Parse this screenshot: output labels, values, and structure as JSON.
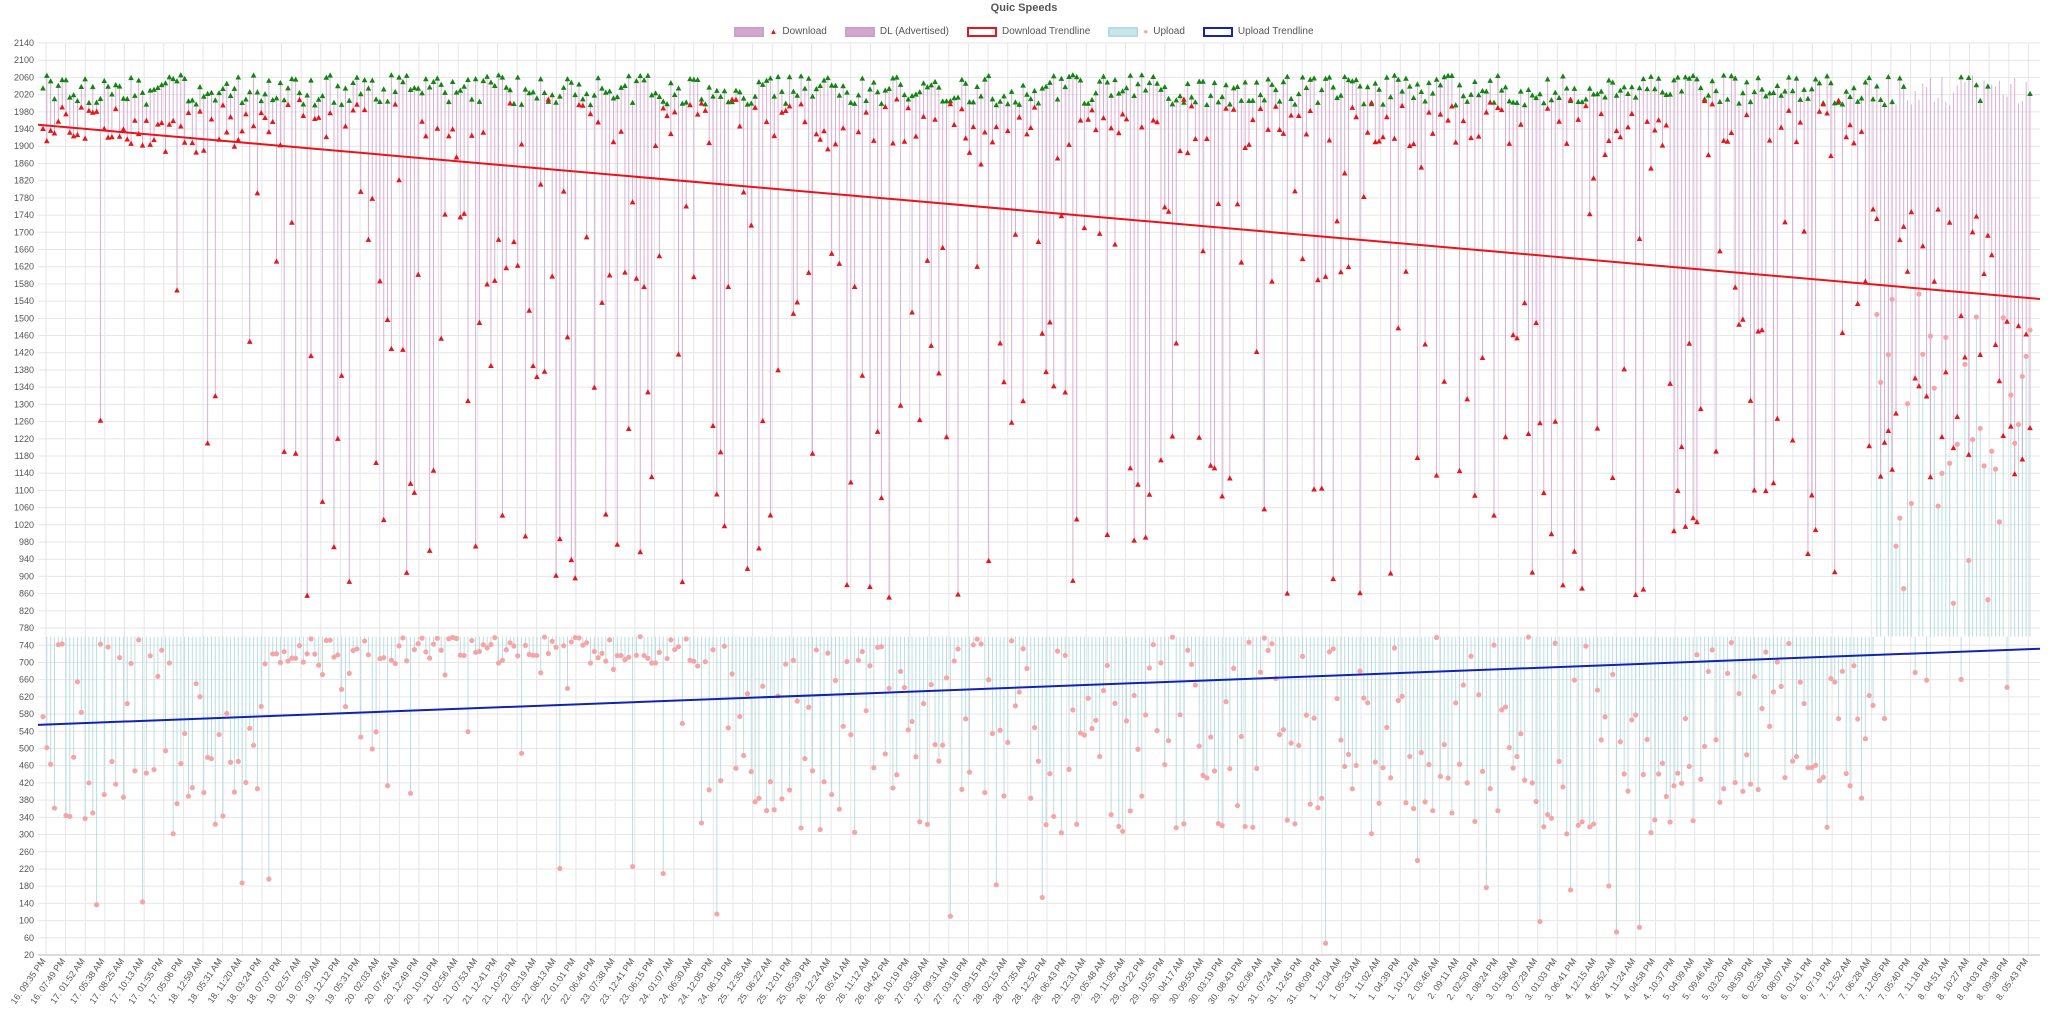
{
  "chart_data": {
    "type": "line",
    "title": "Quic Speeds",
    "legend_position": "top-center",
    "grid": true,
    "ylim": [
      20,
      2140
    ],
    "y_ticks": [
      2140,
      2100,
      2060,
      2020,
      1980,
      1940,
      1900,
      1860,
      1820,
      1780,
      1740,
      1700,
      1660,
      1620,
      1580,
      1540,
      1500,
      1460,
      1420,
      1380,
      1340,
      1300,
      1260,
      1220,
      1180,
      1140,
      1100,
      1060,
      1020,
      980,
      940,
      900,
      860,
      820,
      780,
      740,
      700,
      660,
      620,
      580,
      540,
      500,
      460,
      420,
      380,
      340,
      300,
      260,
      220,
      180,
      140,
      100,
      60,
      20
    ],
    "x_tick_labels": [
      "16. 09:35 PM",
      "16. 07:49 PM",
      "17. 01:52 AM",
      "17. 05:38 AM",
      "17. 08:25 AM",
      "17. 10:13 AM",
      "17. 01:55 PM",
      "17. 05:06 PM",
      "18. 12:59 AM",
      "18. 05:31 AM",
      "18. 11:20 AM",
      "18. 03:24 PM",
      "18. 07:07 PM",
      "19. 02:57 AM",
      "19. 07:30 AM",
      "19. 12:12 PM",
      "19. 05:31 PM",
      "20. 02:03 AM",
      "20. 07:45 AM",
      "20. 12:49 PM",
      "20. 10:19 PM",
      "21. 02:56 AM",
      "21. 07:53 AM",
      "21. 12:41 PM",
      "21. 10:25 PM",
      "22. 03:19 AM",
      "22. 08:13 AM",
      "22. 01:01 PM",
      "22. 06:46 PM",
      "23. 07:38 AM",
      "23. 12:41 PM",
      "23. 06:15 PM",
      "24. 01:07 AM",
      "24. 06:30 AM",
      "24. 12:05 PM",
      "24. 06:19 PM",
      "25. 12:35 AM",
      "25. 06:22 AM",
      "25. 12:01 PM",
      "25. 05:39 PM",
      "26. 12:24 AM",
      "26. 05:41 AM",
      "26. 11:12 AM",
      "26. 04:42 PM",
      "26. 10:19 PM",
      "27. 03:58 AM",
      "27. 09:31 AM",
      "27. 03:18 PM",
      "27. 09:15 PM",
      "28. 02:15 AM",
      "28. 07:35 AM",
      "28. 12:52 PM",
      "28. 06:43 PM",
      "29. 12:31 AM",
      "29. 05:48 AM",
      "29. 11:05 AM",
      "29. 04:22 PM",
      "29. 10:55 PM",
      "30. 04:17 AM",
      "30. 09:55 AM",
      "30. 03:19 PM",
      "30. 08:43 PM",
      "31. 02:06 AM",
      "31. 07:24 AM",
      "31. 12:45 PM",
      "31. 06:09 PM",
      "1. 12:04 AM",
      "1. 05:33 AM",
      "1. 11:02 AM",
      "1. 04:39 PM",
      "1. 10:12 PM",
      "2. 03:46 AM",
      "2. 09:11 AM",
      "2. 02:50 PM",
      "2. 08:24 PM",
      "3. 01:58 AM",
      "3. 07:29 AM",
      "3. 01:03 PM",
      "3. 06:41 PM",
      "4. 12:15 AM",
      "4. 05:52 AM",
      "4. 11:24 AM",
      "4. 04:58 PM",
      "4. 10:37 PM",
      "5. 04:09 AM",
      "5. 09:46 AM",
      "5. 03:20 PM",
      "5. 08:59 PM",
      "6. 02:35 AM",
      "6. 08:07 AM",
      "6. 01:41 PM",
      "6. 07:19 PM",
      "7. 12:52 AM",
      "7. 06:28 AM",
      "7. 12:05 PM",
      "7. 05:40 PM",
      "7. 11:18 PM",
      "8. 04:51 AM",
      "8. 10:27 AM",
      "8. 04:03 PM",
      "8. 09:38 PM",
      "8. 05:43 PM"
    ],
    "series": [
      {
        "name": "Download",
        "kind": "triangle-markers",
        "color": "#e8141a",
        "fill_color": "#d4a6d0",
        "trend_start": 1950,
        "trend_end": 1545
      },
      {
        "name": "DL (Advertised)",
        "kind": "triangle-markers",
        "color": "#118411",
        "typical_min": 1995,
        "typical_max": 2065
      },
      {
        "name": "Download Trendline",
        "kind": "line",
        "color": "#e8141a",
        "values": [
          1950,
          1545
        ]
      },
      {
        "name": "Upload",
        "kind": "circle-markers",
        "color": "#f4a6a6",
        "fill_color": "#a7d7dc",
        "trend_start": 555,
        "trend_end": 732
      },
      {
        "name": "Upload Trendline",
        "kind": "line",
        "color": "#1122b4",
        "values": [
          555,
          732
        ]
      }
    ],
    "n_points": 520,
    "colors": {
      "download": "#e8141a",
      "download_fill": "#d4a6d0",
      "advertised": "#118411",
      "upload": "#f4a6a6",
      "upload_fill": "#a7d7dc",
      "download_trend": "#e8141a",
      "upload_trend": "#1122b4",
      "grid": "#e6e6e6",
      "axis_text": "#555555"
    }
  }
}
